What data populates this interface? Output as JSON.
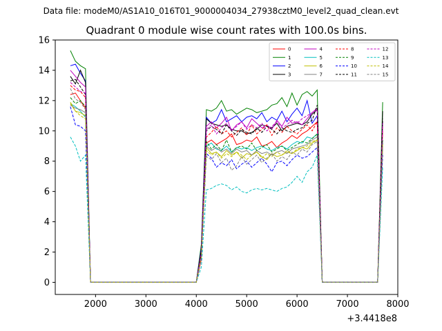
{
  "figure": {
    "supertitle": "Data file: modeM0/AS1A10_016T01_9000004034_27938cztM0_level2_quad_clean.evt"
  },
  "chart_data": {
    "type": "line",
    "title": "Quadrant 0 module wise count rates with 100.0s bins.",
    "xlabel": "",
    "ylabel": "",
    "x_offset_label": "+3.4418e8",
    "xlim": [
      1200,
      8000
    ],
    "ylim": [
      -0.8,
      16
    ],
    "x_ticks": [
      2000,
      3000,
      4000,
      5000,
      6000,
      7000,
      8000
    ],
    "x_tick_labels": [
      "2000",
      "3000",
      "4000",
      "5000",
      "6000",
      "7000",
      "8000"
    ],
    "y_ticks": [
      0,
      2,
      4,
      6,
      8,
      10,
      12,
      14,
      16
    ],
    "y_tick_labels": [
      "0",
      "2",
      "4",
      "6",
      "8",
      "10",
      "12",
      "14",
      "16"
    ],
    "grid": false,
    "legend_position": "top-right",
    "legend_columns": 4,
    "gaps": [
      [
        1900,
        4000
      ],
      [
        6500,
        7600
      ]
    ],
    "x": [
      1500,
      1600,
      1700,
      1800,
      1900,
      4000,
      4100,
      4200,
      4300,
      4400,
      4500,
      4600,
      4700,
      4800,
      4900,
      5000,
      5100,
      5200,
      5300,
      5400,
      5500,
      5600,
      5700,
      5800,
      5900,
      6000,
      6100,
      6200,
      6300,
      6400,
      6500,
      7600,
      7700
    ],
    "series": [
      {
        "name": "0",
        "color": "#ff0000",
        "dash": "solid",
        "values": [
          12.4,
          12.5,
          12.0,
          11.5,
          0.0,
          0.0,
          1.5,
          9.2,
          9.4,
          9.1,
          9.3,
          9.5,
          9.8,
          9.1,
          9.2,
          9.4,
          9.3,
          9.6,
          9.0,
          9.1,
          9.3,
          8.9,
          9.2,
          9.4,
          9.7,
          9.5,
          9.8,
          10.0,
          10.3,
          10.6,
          0.0,
          0.0,
          10.0
        ]
      },
      {
        "name": "1",
        "color": "#008000",
        "dash": "solid",
        "values": [
          15.3,
          14.6,
          14.3,
          14.1,
          0.0,
          0.0,
          2.5,
          11.4,
          11.3,
          11.5,
          12.0,
          11.3,
          11.4,
          11.1,
          11.3,
          11.5,
          11.4,
          11.2,
          11.3,
          11.4,
          11.7,
          11.8,
          12.2,
          11.6,
          12.5,
          11.7,
          12.4,
          12.6,
          12.3,
          12.7,
          0.0,
          0.0,
          11.9
        ]
      },
      {
        "name": "2",
        "color": "#0000ff",
        "dash": "solid",
        "values": [
          14.3,
          14.4,
          13.8,
          13.3,
          0.0,
          0.0,
          2.3,
          10.9,
          10.5,
          10.7,
          11.4,
          10.6,
          10.8,
          11.0,
          10.6,
          10.9,
          11.0,
          10.8,
          11.2,
          10.6,
          10.9,
          10.7,
          11.3,
          10.6,
          11.1,
          11.5,
          11.0,
          12.0,
          10.5,
          11.0,
          0.0,
          0.0,
          10.5
        ]
      },
      {
        "name": "3",
        "color": "#000000",
        "dash": "solid",
        "values": [
          13.6,
          13.1,
          14.0,
          13.2,
          0.0,
          0.0,
          2.2,
          10.8,
          10.5,
          10.4,
          10.3,
          10.4,
          10.1,
          10.0,
          10.0,
          9.8,
          9.9,
          10.1,
          10.4,
          10.3,
          10.2,
          10.5,
          10.0,
          10.3,
          10.4,
          10.5,
          10.4,
          10.6,
          11.1,
          11.4,
          0.0,
          0.0,
          11.3
        ]
      },
      {
        "name": "4",
        "color": "#bf00bf",
        "dash": "solid",
        "values": [
          14.0,
          13.6,
          13.2,
          12.9,
          0.0,
          0.0,
          2.0,
          10.3,
          10.6,
          10.2,
          10.5,
          10.9,
          10.0,
          10.4,
          10.6,
          10.2,
          10.8,
          10.5,
          10.2,
          10.4,
          10.1,
          10.7,
          10.3,
          10.9,
          10.5,
          10.6,
          10.4,
          10.8,
          11.2,
          11.5,
          0.0,
          0.0,
          10.6
        ]
      },
      {
        "name": "5",
        "color": "#00bfbf",
        "dash": "solid",
        "values": [
          11.8,
          11.6,
          11.3,
          10.9,
          0.0,
          0.0,
          1.8,
          9.0,
          9.2,
          8.8,
          8.7,
          9.0,
          8.6,
          8.9,
          8.8,
          8.9,
          8.7,
          8.9,
          9.0,
          8.8,
          8.7,
          8.9,
          9.0,
          8.8,
          9.1,
          9.3,
          9.2,
          9.6,
          9.5,
          9.8,
          0.0,
          0.0,
          9.2
        ]
      },
      {
        "name": "6",
        "color": "#bfbf00",
        "dash": "solid",
        "values": [
          11.9,
          11.3,
          11.2,
          11.0,
          0.0,
          0.0,
          1.7,
          8.9,
          8.5,
          8.6,
          8.3,
          8.7,
          8.4,
          8.6,
          8.2,
          8.5,
          8.4,
          8.6,
          8.3,
          8.1,
          8.5,
          8.3,
          8.4,
          8.6,
          8.5,
          8.7,
          8.9,
          8.8,
          9.2,
          9.4,
          0.0,
          0.0,
          9.0
        ]
      },
      {
        "name": "7",
        "color": "#808080",
        "dash": "solid",
        "values": [
          11.7,
          11.5,
          11.4,
          11.2,
          0.0,
          0.0,
          1.7,
          9.0,
          8.7,
          8.9,
          8.6,
          8.8,
          8.5,
          8.8,
          8.6,
          8.7,
          8.4,
          8.7,
          8.5,
          8.6,
          8.4,
          8.6,
          8.7,
          8.5,
          8.8,
          8.9,
          9.0,
          9.1,
          9.4,
          9.6,
          0.0,
          0.0,
          9.3
        ]
      },
      {
        "name": "8",
        "color": "#ff0000",
        "dash": "dashed",
        "values": [
          13.0,
          12.7,
          12.6,
          12.2,
          0.0,
          0.0,
          1.9,
          9.6,
          9.9,
          10.3,
          9.8,
          10.0,
          9.6,
          9.9,
          10.2,
          9.7,
          10.4,
          9.8,
          10.1,
          10.4,
          9.7,
          10.2,
          9.9,
          10.3,
          10.0,
          9.8,
          10.1,
          10.4,
          10.0,
          10.6,
          0.0,
          0.0,
          10.3
        ]
      },
      {
        "name": "9",
        "color": "#008000",
        "dash": "dashed",
        "values": [
          12.2,
          11.8,
          12.0,
          11.6,
          0.0,
          0.0,
          1.8,
          9.3,
          8.8,
          9.1,
          8.7,
          9.4,
          8.6,
          8.9,
          9.0,
          8.8,
          9.2,
          8.7,
          8.9,
          9.1,
          8.6,
          8.8,
          9.0,
          8.7,
          8.9,
          9.1,
          9.3,
          9.2,
          9.5,
          9.8,
          0.0,
          0.0,
          9.4
        ]
      },
      {
        "name": "10",
        "color": "#0000ff",
        "dash": "dashed",
        "values": [
          11.6,
          10.4,
          10.3,
          10.0,
          0.0,
          0.0,
          1.6,
          8.5,
          8.2,
          7.6,
          7.9,
          7.7,
          8.1,
          7.5,
          7.8,
          8.0,
          7.6,
          7.9,
          8.2,
          7.8,
          7.3,
          7.9,
          8.0,
          7.7,
          8.1,
          8.4,
          8.2,
          8.3,
          8.6,
          8.9,
          0.0,
          0.0,
          8.4
        ]
      },
      {
        "name": "11",
        "color": "#000000",
        "dash": "dashed",
        "values": [
          13.3,
          13.4,
          12.9,
          12.4,
          0.0,
          0.0,
          2.0,
          10.0,
          10.3,
          10.1,
          9.8,
          10.4,
          10.0,
          9.7,
          10.1,
          9.9,
          9.8,
          10.2,
          9.9,
          10.3,
          10.1,
          9.8,
          10.2,
          10.0,
          9.9,
          10.1,
          10.2,
          10.5,
          10.7,
          11.7,
          0.0,
          0.0,
          10.8
        ]
      },
      {
        "name": "12",
        "color": "#bf00bf",
        "dash": "dashed",
        "values": [
          13.2,
          12.9,
          12.6,
          12.5,
          0.0,
          0.0,
          1.9,
          10.1,
          10.4,
          9.8,
          10.2,
          10.5,
          10.0,
          10.3,
          10.6,
          10.1,
          10.4,
          10.2,
          10.5,
          10.0,
          10.3,
          10.6,
          10.2,
          10.4,
          10.7,
          10.5,
          10.8,
          11.0,
          11.2,
          11.4,
          0.0,
          0.0,
          10.5
        ]
      },
      {
        "name": "13",
        "color": "#00bfbf",
        "dash": "dashed",
        "values": [
          9.6,
          9.0,
          8.0,
          8.4,
          0.0,
          0.0,
          1.0,
          6.1,
          6.2,
          6.4,
          6.5,
          6.4,
          6.1,
          6.3,
          6.0,
          5.9,
          6.1,
          6.2,
          6.1,
          6.2,
          6.1,
          6.0,
          6.2,
          6.3,
          6.6,
          7.0,
          6.6,
          7.3,
          7.6,
          8.4,
          0.0,
          0.0,
          7.6
        ]
      },
      {
        "name": "14",
        "color": "#bfbf00",
        "dash": "dashed",
        "values": [
          11.8,
          11.3,
          11.0,
          10.8,
          0.0,
          0.0,
          1.7,
          8.7,
          8.4,
          8.6,
          8.2,
          8.5,
          8.3,
          8.6,
          8.4,
          8.1,
          8.4,
          8.6,
          8.2,
          8.5,
          8.3,
          8.6,
          8.4,
          8.7,
          8.5,
          8.8,
          8.9,
          9.0,
          9.3,
          9.4,
          0.0,
          0.0,
          9.1
        ]
      },
      {
        "name": "15",
        "color": "#808080",
        "dash": "dashed",
        "values": [
          12.8,
          12.1,
          11.9,
          11.4,
          0.0,
          0.0,
          1.6,
          8.3,
          8.1,
          8.5,
          7.9,
          8.2,
          7.4,
          7.7,
          8.3,
          7.8,
          8.1,
          8.4,
          7.9,
          8.2,
          8.5,
          8.0,
          8.3,
          8.1,
          8.6,
          8.4,
          8.8,
          8.6,
          9.1,
          9.3,
          0.0,
          0.0,
          8.9
        ]
      }
    ]
  }
}
